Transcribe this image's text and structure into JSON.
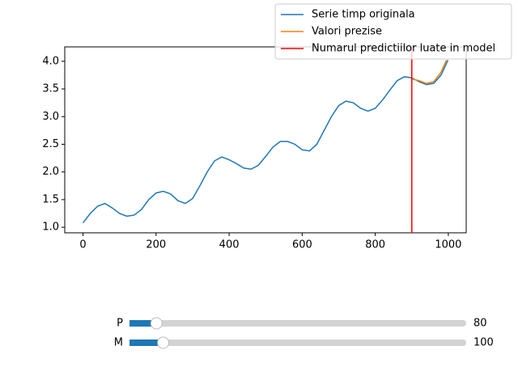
{
  "chart_data": {
    "type": "line",
    "xlim": [
      -49.95,
      1048.95
    ],
    "xticks": [
      0,
      200,
      400,
      600,
      800,
      1000
    ],
    "ylim": [
      0.9,
      4.26
    ],
    "yticks": [
      {
        "value": 1,
        "label": "1.0"
      },
      1.5,
      {
        "value": 2,
        "label": "2.0"
      },
      2.5,
      {
        "value": 3,
        "label": "3.0"
      },
      3.5,
      {
        "value": 4,
        "label": "4.0"
      }
    ],
    "series": [
      {
        "name": "Serie timp originala",
        "color": "#1f77b4",
        "x": [
          0,
          20,
          40,
          60,
          80,
          100,
          120,
          140,
          160,
          180,
          200,
          220,
          240,
          260,
          280,
          300,
          320,
          340,
          360,
          380,
          400,
          420,
          440,
          460,
          480,
          500,
          520,
          540,
          560,
          580,
          600,
          620,
          640,
          660,
          680,
          700,
          720,
          740,
          760,
          780,
          800,
          820,
          840,
          860,
          880,
          900,
          920,
          940,
          960,
          980,
          999
        ],
        "values": [
          1.08,
          1.25,
          1.38,
          1.43,
          1.35,
          1.25,
          1.2,
          1.22,
          1.32,
          1.5,
          1.62,
          1.65,
          1.6,
          1.48,
          1.43,
          1.52,
          1.75,
          2.0,
          2.2,
          2.27,
          2.22,
          2.15,
          2.07,
          2.05,
          2.12,
          2.28,
          2.45,
          2.55,
          2.55,
          2.5,
          2.4,
          2.38,
          2.5,
          2.75,
          3.0,
          3.2,
          3.28,
          3.25,
          3.15,
          3.1,
          3.15,
          3.3,
          3.48,
          3.65,
          3.72,
          3.7,
          3.63,
          3.58,
          3.6,
          3.75,
          4.02
        ]
      },
      {
        "name": "Valori prezise",
        "color": "#ff7f0e",
        "x": [
          900,
          920,
          940,
          960,
          980,
          995
        ],
        "values": [
          3.68,
          3.65,
          3.6,
          3.63,
          3.8,
          4.02
        ]
      }
    ],
    "vline": {
      "name": "Numarul predictiilor luate in model",
      "color": "#ff0000",
      "x": 900
    }
  },
  "sliders": [
    {
      "label": "P",
      "value": 80,
      "range": [
        0,
        1000
      ]
    },
    {
      "label": "M",
      "value": 100,
      "range": [
        0,
        1000
      ]
    }
  ]
}
